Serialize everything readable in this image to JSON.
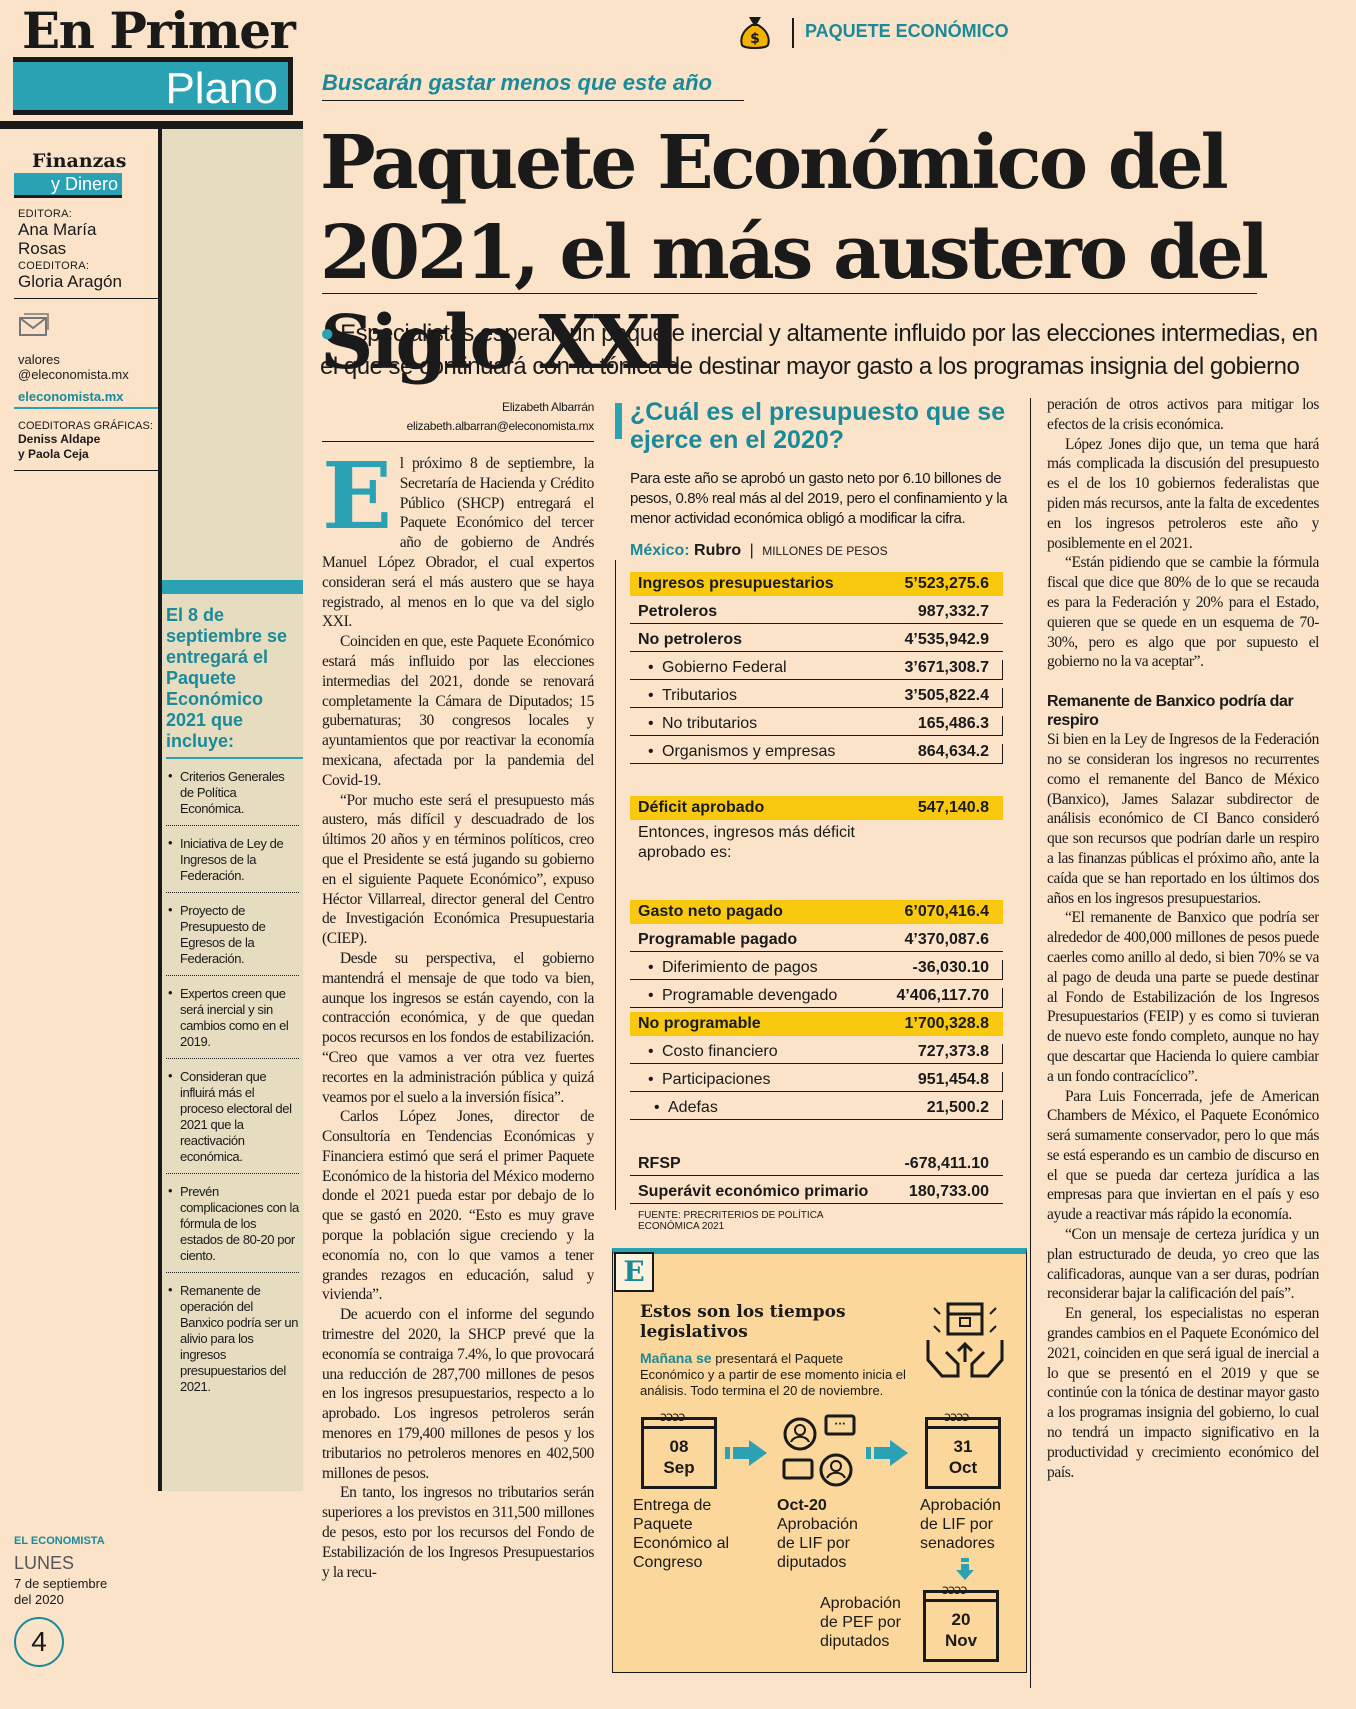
{
  "masthead": {
    "line1": "En Primer",
    "line2": "Plano"
  },
  "section": {
    "line1": "Finanzas",
    "line2": "y Dinero"
  },
  "staff": {
    "editor_label": "EDITORA:",
    "editor_name1": "Ana María",
    "editor_name2": "Rosas",
    "coeditor_label": "COEDITORA:",
    "coeditor_name": "Gloria Aragón",
    "email_line1": "valores",
    "email_line2": "@eleconomista.mx",
    "website": "eleconomista.mx",
    "graphics_label": "COEDITORAS GRÁFICAS:",
    "graphics_name1": "Deniss Aldape",
    "graphics_name2": "y Paola Ceja"
  },
  "sidebar": {
    "title": "El 8 de septiembre se entregará el Paquete Económico 2021 que incluye:",
    "items": [
      "Criterios Generales de Política Económica.",
      "Iniciativa de Ley de Ingresos de la Federación.",
      "Proyecto de Presupuesto de Egresos de la Federación.",
      "Expertos creen que será inercial y sin cambios como en el 2019.",
      "Consideran que influirá más el proceso electoral del 2021 que la reactivación económica.",
      "Prevén complicaciones con la fórmula de los estados de 80-20 por ciento.",
      "Remanente de operación del Banxico podría ser un alivio para los ingresos presupuestarios del 2021."
    ]
  },
  "footer": {
    "brand": "EL ECONOMISTA",
    "day": "LUNES",
    "date1": "7 de septiembre",
    "date2": "del 2020",
    "page": "4"
  },
  "header": {
    "section_label": "PAQUETE ECONÓMICO",
    "kicker": "Buscarán gastar menos que este año"
  },
  "headline": "Paquete Económico del 2021, el más austero del Siglo XXI",
  "lead": "Especialistas esperan un paquete inercial y altamente influido por las elecciones intermedias, en el que se continuará con la tónica de destinar mayor gasto a los programas insignia del gobierno",
  "byline": {
    "author": "Elizabeth Albarrán",
    "email": "elizabeth.albarran@eleconomista.mx"
  },
  "article": {
    "dropcap": "E",
    "col1": [
      "l próximo 8 de septiembre, la Secretaría de Hacienda y Crédito Público (SHCP) entregará el Paquete Económico del tercer año de gobierno de Andrés Manuel López Obrador, el cual expertos consideran será el más austero que se haya registrado, al menos en lo que va del siglo XXI.",
      "Coinciden en que, este Paquete Económico estará más influido por las elecciones intermedias del 2021, donde se renovará completamente la Cámara de Diputados; 15 gubernaturas; 30 congresos locales y ayuntamientos que por reactivar la economía mexicana, afectada por la pandemia del Covid-19.",
      "“Por mucho este será el presupuesto más austero, más difícil y descuadrado de los últimos 20 años y en términos políticos, creo que el Presidente se está jugando su gobierno en el siguiente Paquete Económico”, expuso Héctor Villarreal, director general del Centro de Investigación Económica Presupuestaria (CIEP).",
      "Desde su perspectiva, el gobierno mantendrá el mensaje de que todo va bien, aunque los ingresos se están cayendo, con la contracción económica, y de que quedan pocos recursos en los fondos de estabilización. “Creo que vamos a ver otra vez fuertes recortes en la administración pública y quizá veamos por el suelo a la inversión física”.",
      "Carlos López Jones, director de Consultoría en Tendencias Económicas y Financiera estimó que será el primer Paquete Económico de la historia del México moderno donde el 2021 pueda estar por debajo de lo que se gastó en 2020. “Esto es muy grave porque la población sigue creciendo y la economía no, con lo que vamos a tener grandes rezagos en educación, salud y vivienda”.",
      "De acuerdo con el informe del segundo trimestre del 2020, la SHCP prevé que la economía se contraiga 7.4%, lo que provocará una reducción de 287,700 millones de pesos en los ingresos presupuestarios, respecto a lo aprobado. Los ingresos petroleros serán menores en 179,400 millones de pesos y los tributarios no petroleros menores en 402,500 millones de pesos.",
      "En tanto, los ingresos no tributarios serán superiores a los previstos en 311,500 millones de pesos, esto por los recursos del Fondo de Estabilización de los Ingresos Presupuestarios y la recu-"
    ],
    "col3_p1": "peración de otros activos para mitigar los efectos de la crisis económica.",
    "col3_p2": "López Jones dijo que, un tema que hará más complicada la discusión del presupuesto es el de los 10 gobiernos federalistas que piden más recursos, ante la falta de excedentes en los ingresos petroleros este año y posiblemente en el 2021.",
    "col3_p3": "“Están pidiendo que se cambie la fórmula fiscal que dice que 80% de lo que se recauda es para la Federación y 20% para el Estado, quieren que se quede en un esquema de 70-30%, pero es algo que por supuesto el gobierno no la va aceptar”.",
    "col3_subhead": "Remanente de Banxico podría dar respiro",
    "col3_p4": "Si bien en la Ley de Ingresos de la Federación no se consideran los ingresos no recurrentes como el remanente del Banco de México (Banxico), James Salazar subdirector de análisis económico de CI Banco consideró que son recursos que podrían darle un respiro a las finanzas públicas el próximo año, ante la caída que se han reportado en los últimos dos años en los ingresos presupuestarios.",
    "col3_p5": "“El remanente de Banxico que podría ser alrededor de 400,000 millones de pesos puede caerles como anillo al dedo, si bien 70% se va al pago de deuda una parte se puede destinar al Fondo de Estabilización de los Ingresos Presupuestarios (FEIP) y es como si tuvieran de nuevo este fondo completo, aunque no hay que descartar que Hacienda lo quiere cambiar a un fondo contracíclico”.",
    "col3_p6": "Para Luis Foncerrada, jefe de American Chambers de México, el Paquete Económico será sumamente conservador, pero lo que más se está esperando es un cambio de discurso en el que se pueda dar certeza jurídica a las empresas para que inviertan en el país y eso ayude a reactivar más rápido la economía.",
    "col3_p7": "“Con un mensaje de certeza jurídica y un plan estructurado de deuda, yo creo que las calificadoras, aunque van a ser duras, podrían reconsiderar bajar la calificación del país”.",
    "col3_p8": "En general, los especialistas no esperan grandes cambios en el Paquete Económico del 2021, coinciden en que será igual de inercial a lo que se presentó en el 2019 y que se continúe con la tónica de destinar mayor gasto a los programas insignia del gobierno, lo cual no tendrá un impacto significativo en la productividad y crecimiento económico del país."
  },
  "budget_box": {
    "title": "¿Cuál es el presupuesto que se ejerce en el 2020?",
    "intro": "Para este año se aprobó un gasto neto por 6.10 billones de pesos, 0.8% real más al del 2019, pero el confinamiento y la menor actividad económica obligó a modificar la cifra.",
    "label_country": "México:",
    "label_rubro": "Rubro",
    "label_sep": "|",
    "label_units": "MILLONES DE PESOS",
    "rows": [
      {
        "label": "Ingresos presupuestarios",
        "value": "5’523,275.6"
      },
      {
        "label": "Petroleros",
        "value": "987,332.7"
      },
      {
        "label": "No petroleros",
        "value": "4’535,942.9"
      },
      {
        "label": "Gobierno Federal",
        "value": "3’671,308.7"
      },
      {
        "label": "Tributarios",
        "value": "3’505,822.4"
      },
      {
        "label": "No tributarios",
        "value": "165,486.3"
      },
      {
        "label": "Organismos y empresas",
        "value": "864,634.2"
      },
      {
        "label": "Déficit aprobado",
        "value": "547,140.8"
      },
      {
        "label": "Gasto neto pagado",
        "value": "6’070,416.4"
      },
      {
        "label": "Programable pagado",
        "value": "4’370,087.6"
      },
      {
        "label": "Diferimiento de pagos",
        "value": "-36,030.10"
      },
      {
        "label": "Programable devengado",
        "value": "4’406,117.70"
      },
      {
        "label": "No programable",
        "value": "1’700,328.8"
      },
      {
        "label": "Costo financiero",
        "value": "727,373.8"
      },
      {
        "label": "Participaciones",
        "value": "951,454.8"
      },
      {
        "label": "Adefas",
        "value": "21,500.2"
      },
      {
        "label": "RFSP",
        "value": "-678,411.10"
      },
      {
        "label": "Superávit económico primario",
        "value": "180,733.00"
      }
    ],
    "note": "Entonces, ingresos más déficit aprobado es:",
    "source_line1": "FUENTE: PRECRITERIOS DE POLÍTICA",
    "source_line2": "ECONÓMICA 2021"
  },
  "timeline": {
    "badge": "E",
    "title_line1": "Estos son los tiempos",
    "title_line2": "legislativos",
    "intro_em": "Mañana se",
    "intro": " presentará el Paquete Económico y a partir de ese momento inicia el análisis. Todo termina el 20 de noviembre.",
    "rings": "ↄↄↄↄ",
    "cal1": {
      "day": "08",
      "month": "Sep"
    },
    "cal2": {
      "day": "31",
      "month": "Oct"
    },
    "cal3": {
      "day": "20",
      "month": "Nov"
    },
    "cap1": "Entrega de Paquete Económico al Congreso",
    "cap2_date": "Oct-20",
    "cap2": "Aprobación de LIF por diputados",
    "cap3": "Aprobación de LIF por senadores",
    "cap4": "Aprobación de PEF por diputados",
    "chat_glyph": "···"
  },
  "colors": {
    "teal": "#2aa2b3",
    "highlight": "#f9c90f",
    "paper": "#fbe3c9"
  }
}
